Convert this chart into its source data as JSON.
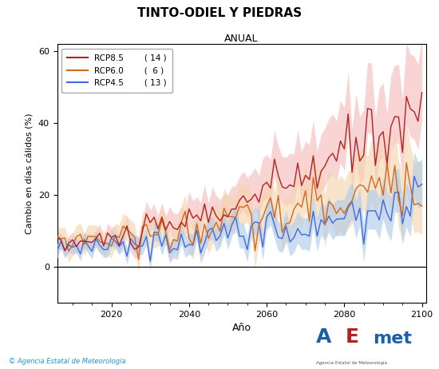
{
  "title": "TINTO-ODIEL Y PIEDRAS",
  "subtitle": "ANUAL",
  "xlabel": "Año",
  "ylabel": "Cambio en días cálidos (%)",
  "xlim": [
    2006,
    2101
  ],
  "ylim": [
    -10,
    62
  ],
  "yticks": [
    0,
    20,
    40,
    60
  ],
  "xticks": [
    2020,
    2040,
    2060,
    2080,
    2100
  ],
  "legend_labels": [
    "RCP8.5",
    "RCP6.0",
    "RCP4.5"
  ],
  "legend_counts": [
    "( 14 )",
    "(  6 )",
    "( 13 )"
  ],
  "rcp85_color": "#b22222",
  "rcp60_color": "#d2691e",
  "rcp45_color": "#4169e1",
  "rcp85_fill": "#f4b8b8",
  "rcp60_fill": "#f5d5b0",
  "rcp45_fill": "#b0cce8",
  "background_color": "#ffffff",
  "footer_text": "© Agencia Estatal de Meteorología",
  "footer_color": "#1a9bce",
  "seed": 42
}
